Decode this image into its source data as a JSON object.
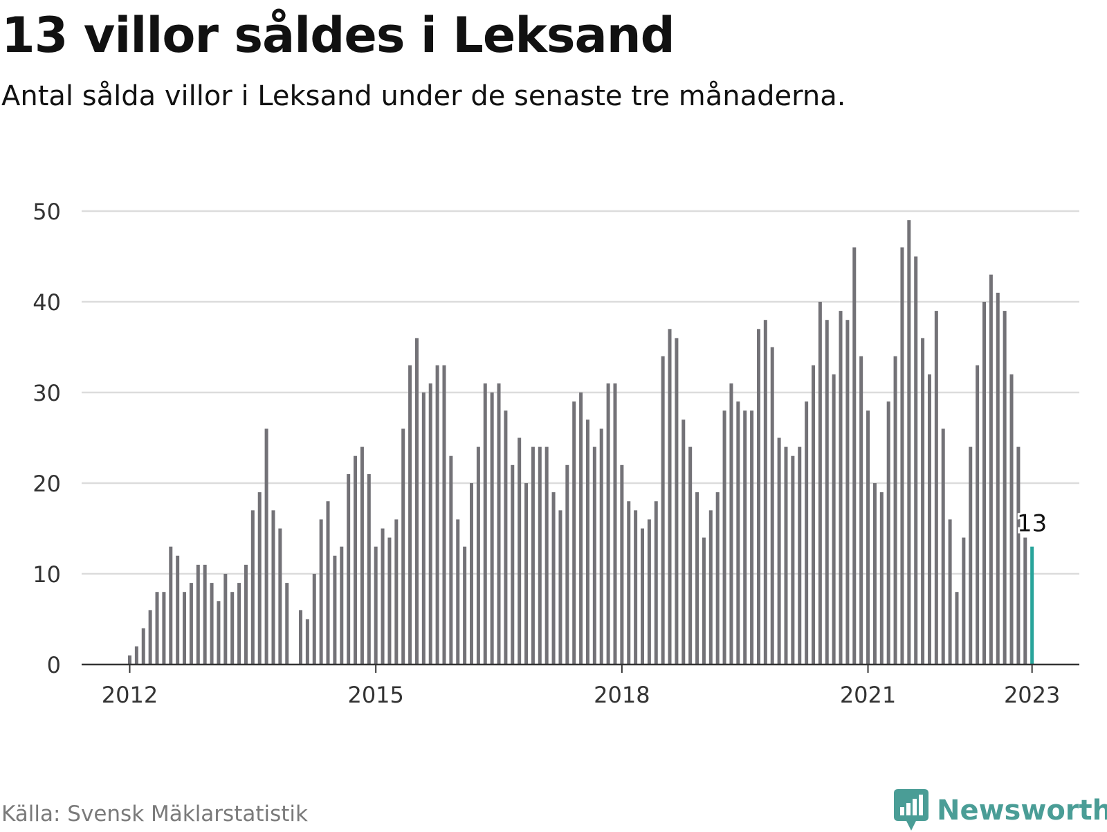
{
  "title": "13 villor såldes i Leksand",
  "subtitle": "Antal sålda villor i Leksand under de senaste tre månaderna.",
  "source": "Källa: Svensk Mäklarstatistik",
  "brand": {
    "name": "Newsworthy",
    "icon": "newsworthy-logo-icon",
    "color": "#4a9d96"
  },
  "chart_data": {
    "type": "bar",
    "start": "2012-01",
    "frequency": "monthly",
    "ylim": [
      0,
      50
    ],
    "yticks": [
      "0",
      "10",
      "20",
      "30",
      "40",
      "50"
    ],
    "xticks": [
      {
        "label": "2012",
        "month": "2012-01"
      },
      {
        "label": "2015",
        "month": "2015-01"
      },
      {
        "label": "2018",
        "month": "2018-01"
      },
      {
        "label": "2021",
        "month": "2021-01"
      },
      {
        "label": "2023",
        "month": "2023-01"
      }
    ],
    "values": [
      1,
      2,
      4,
      6,
      8,
      8,
      13,
      12,
      8,
      9,
      11,
      11,
      9,
      7,
      10,
      8,
      9,
      11,
      17,
      19,
      26,
      17,
      15,
      9,
      0,
      6,
      5,
      10,
      16,
      18,
      12,
      13,
      21,
      23,
      24,
      21,
      13,
      15,
      14,
      16,
      26,
      33,
      36,
      30,
      31,
      33,
      33,
      23,
      16,
      13,
      20,
      24,
      31,
      30,
      31,
      28,
      22,
      25,
      20,
      24,
      24,
      24,
      19,
      17,
      22,
      29,
      30,
      27,
      24,
      26,
      31,
      31,
      22,
      18,
      17,
      15,
      16,
      18,
      34,
      37,
      36,
      27,
      24,
      19,
      14,
      17,
      19,
      28,
      31,
      29,
      28,
      28,
      37,
      38,
      35,
      25,
      24,
      23,
      24,
      29,
      33,
      40,
      38,
      32,
      39,
      38,
      46,
      34,
      28,
      20,
      19,
      29,
      34,
      46,
      49,
      45,
      36,
      32,
      39,
      26,
      16,
      8,
      14,
      24,
      33,
      40,
      43,
      41,
      39,
      32,
      24,
      14,
      13
    ],
    "highlight": {
      "label": "13",
      "value": 13,
      "month": "2023-01"
    },
    "colors": {
      "bar": "#737277",
      "highlight": "#28a49b",
      "grid": "#dcdcdc",
      "axis": "#333333"
    }
  }
}
